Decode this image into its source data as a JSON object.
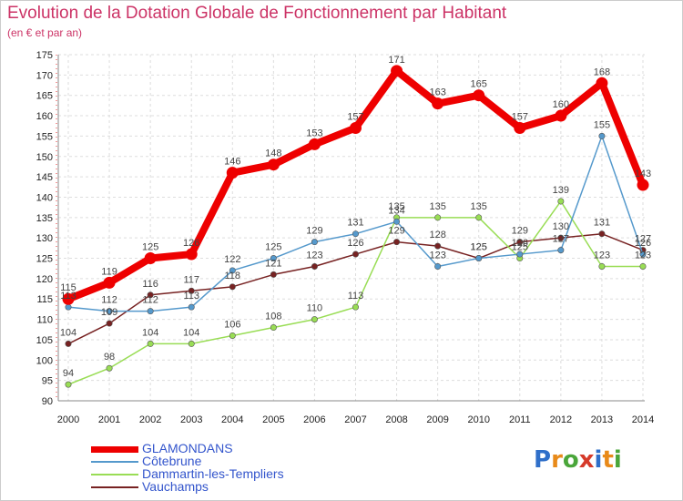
{
  "title": "Evolution de la Dotation Globale de Fonctionnement par Habitant",
  "subtitle": "(en € et par an)",
  "logo": {
    "text": "Proxiti",
    "letters": [
      "P",
      "r",
      "o",
      "x",
      "i",
      "t",
      "i"
    ],
    "colors": [
      "#2f6fc9",
      "#e88a1a",
      "#4aa63a",
      "#d63a2a",
      "#2f6fc9",
      "#e88a1a",
      "#4aa63a"
    ]
  },
  "chart_data": {
    "type": "line",
    "title": "Evolution de la Dotation Globale de Fonctionnement par Habitant",
    "subtitle": "(en € et par an)",
    "xlabel": "",
    "ylabel": "",
    "x": [
      "2000",
      "2001",
      "2002",
      "2003",
      "2004",
      "2005",
      "2006",
      "2007",
      "2008",
      "2009",
      "2010",
      "2011",
      "2012",
      "2013",
      "2014"
    ],
    "ylim": [
      90,
      175
    ],
    "yticks": [
      90,
      95,
      100,
      105,
      110,
      115,
      120,
      125,
      130,
      135,
      140,
      145,
      150,
      155,
      160,
      165,
      170,
      175
    ],
    "grid": true,
    "legend_position": "bottom-left",
    "series": [
      {
        "name": "GLAMONDANS",
        "color": "#ee0000",
        "values": [
          115,
          119,
          125,
          126,
          146,
          148,
          153,
          157,
          171,
          163,
          165,
          157,
          160,
          168,
          143
        ],
        "labels": [
          "115",
          "119",
          "125",
          "126",
          "146",
          "148",
          "153",
          "157",
          "171",
          "163",
          "165",
          "157",
          "160",
          "168",
          "143"
        ]
      },
      {
        "name": "Côtebrune",
        "color": "#5599cc",
        "values": [
          113,
          112,
          112,
          113,
          122,
          125,
          129,
          131,
          134,
          123,
          125,
          126,
          127,
          155,
          126
        ],
        "labels": [
          "113",
          "112",
          "112",
          "113",
          "122",
          "125",
          "129",
          "131",
          "134",
          "123",
          "125",
          "126",
          "127",
          "155",
          "126"
        ]
      },
      {
        "name": "Dammartin-les-Templiers",
        "color": "#99dd55",
        "values": [
          94,
          98,
          104,
          104,
          106,
          108,
          110,
          113,
          135,
          135,
          135,
          125,
          139,
          123,
          123
        ],
        "labels": [
          "94",
          "98",
          "104",
          "104",
          "106",
          "108",
          "110",
          "113",
          "135",
          "135",
          "135",
          "125",
          "139",
          "123",
          "123"
        ]
      },
      {
        "name": "Vauchamps",
        "color": "#772222",
        "values": [
          104,
          109,
          116,
          117,
          118,
          121,
          123,
          126,
          129,
          128,
          125,
          129,
          130,
          131,
          127
        ],
        "labels": [
          "104",
          "109",
          "116",
          "117",
          "118",
          "121",
          "123",
          "126",
          "129",
          "128",
          "125",
          "129",
          "130",
          "131",
          "127"
        ]
      }
    ]
  }
}
